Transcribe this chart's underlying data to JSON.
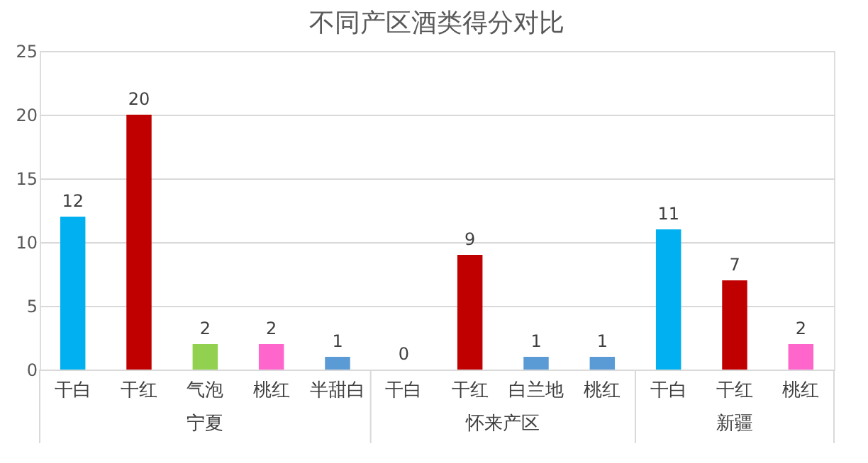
{
  "chart_data": {
    "type": "bar",
    "title": "不同产区酒类得分对比",
    "categories": [
      "干白",
      "干红",
      "气泡",
      "桃红",
      "半甜白",
      "干白",
      "干红",
      "白兰地",
      "桃红",
      "干白",
      "干红",
      "桃红"
    ],
    "values": [
      12,
      20,
      2,
      2,
      1,
      0,
      9,
      1,
      1,
      11,
      7,
      2
    ],
    "colors": [
      "#00b0f0",
      "#c00000",
      "#92d050",
      "#ff66cc",
      "#5b9bd5",
      "#00b0f0",
      "#c00000",
      "#5b9bd5",
      "#5b9bd5",
      "#00b0f0",
      "#c00000",
      "#ff66cc"
    ],
    "ylim": [
      0,
      25
    ],
    "yticks": [
      0,
      5,
      10,
      15,
      20,
      25
    ],
    "grid": "y",
    "data_labels": true,
    "annotations": [
      "宁夏",
      "怀来产区",
      "新疆"
    ]
  }
}
